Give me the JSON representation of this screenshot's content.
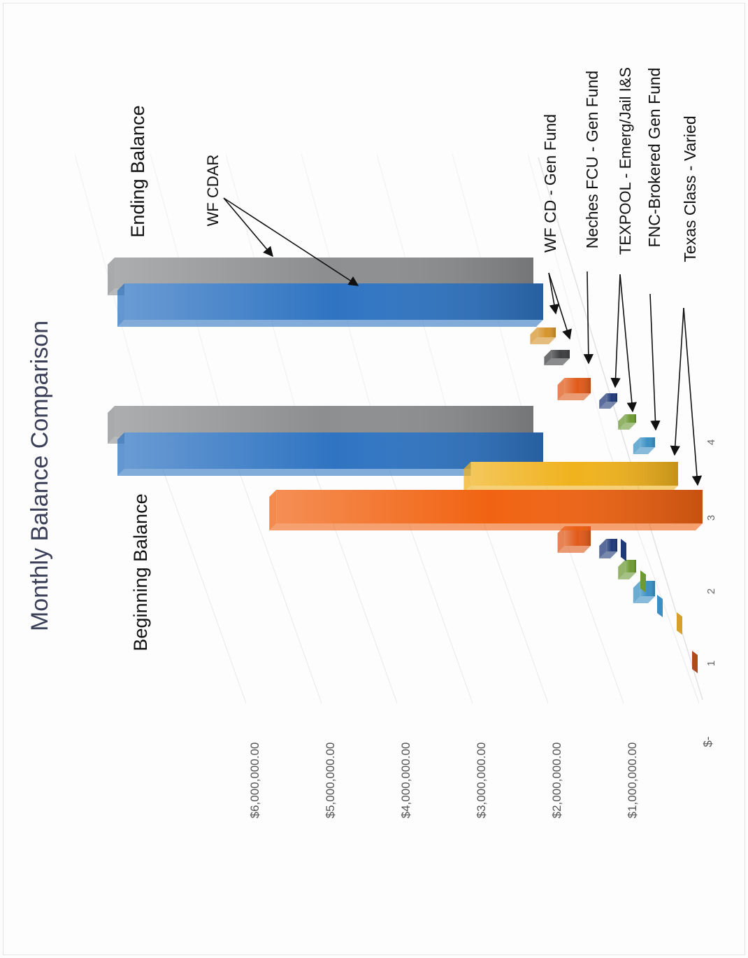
{
  "chart_data": {
    "type": "bar",
    "title": "Monthly Balance Comparison",
    "y_ticks": [
      "$-",
      "$1,000,000.00",
      "$2,000,000.00",
      "$3,000,000.00",
      "$4,000,000.00",
      "$5,000,000.00",
      "$6,000,000.00"
    ],
    "ylim": [
      0,
      6000000
    ],
    "x_ticks": [
      "1",
      "2",
      "3",
      "4"
    ],
    "group_labels": {
      "beginning": "Beginning Balance",
      "ending": "Ending Balance"
    },
    "groups": [
      "Beginning Balance",
      "Ending Balance"
    ],
    "grid": true,
    "series": [
      {
        "label": "WF CDAR (gray)",
        "color": "#8c8e90",
        "values": [
          5500000,
          5500000
        ]
      },
      {
        "label": "WF CDAR (blue)",
        "color": "#2f74c2",
        "values": [
          5500000,
          5500000
        ]
      },
      {
        "label": "WF CD - Gen Fund",
        "color": "#d6942c",
        "values": [
          30000,
          200000
        ]
      },
      {
        "label": "Neches FCU - Gen Fund (dark)",
        "color": "#3e3f41",
        "values": [
          0,
          200000
        ]
      },
      {
        "label": "Neches FCU - Gen Fund",
        "color": "#e05a19",
        "values": [
          300000,
          300000
        ]
      },
      {
        "label": "TEXPOOL - Emerg/Jail I&S",
        "color": "#203a78",
        "values": [
          100000,
          100000
        ]
      },
      {
        "label": "TEXPOOL - Emerg/Jail I&S (green)",
        "color": "#6d9a35",
        "values": [
          100000,
          100000
        ]
      },
      {
        "label": "FNC-Brokered Gen Fund",
        "color": "#3a90c4",
        "values": [
          150000,
          150000
        ]
      },
      {
        "label": "Texas Class - Varied (gold)",
        "color": "#f0b21d",
        "values": [
          2700000,
          0
        ]
      },
      {
        "label": "Texas Class - Varied",
        "color": "#f16312",
        "values": [
          5600000,
          0
        ]
      }
    ],
    "annotations": [
      "WF CDAR",
      "WF CD - Gen Fund",
      "Neches FCU - Gen Fund",
      "TEXPOOL - Emerg/Jail I&S",
      "FNC-Brokered Gen Fund",
      "Texas Class - Varied"
    ]
  }
}
